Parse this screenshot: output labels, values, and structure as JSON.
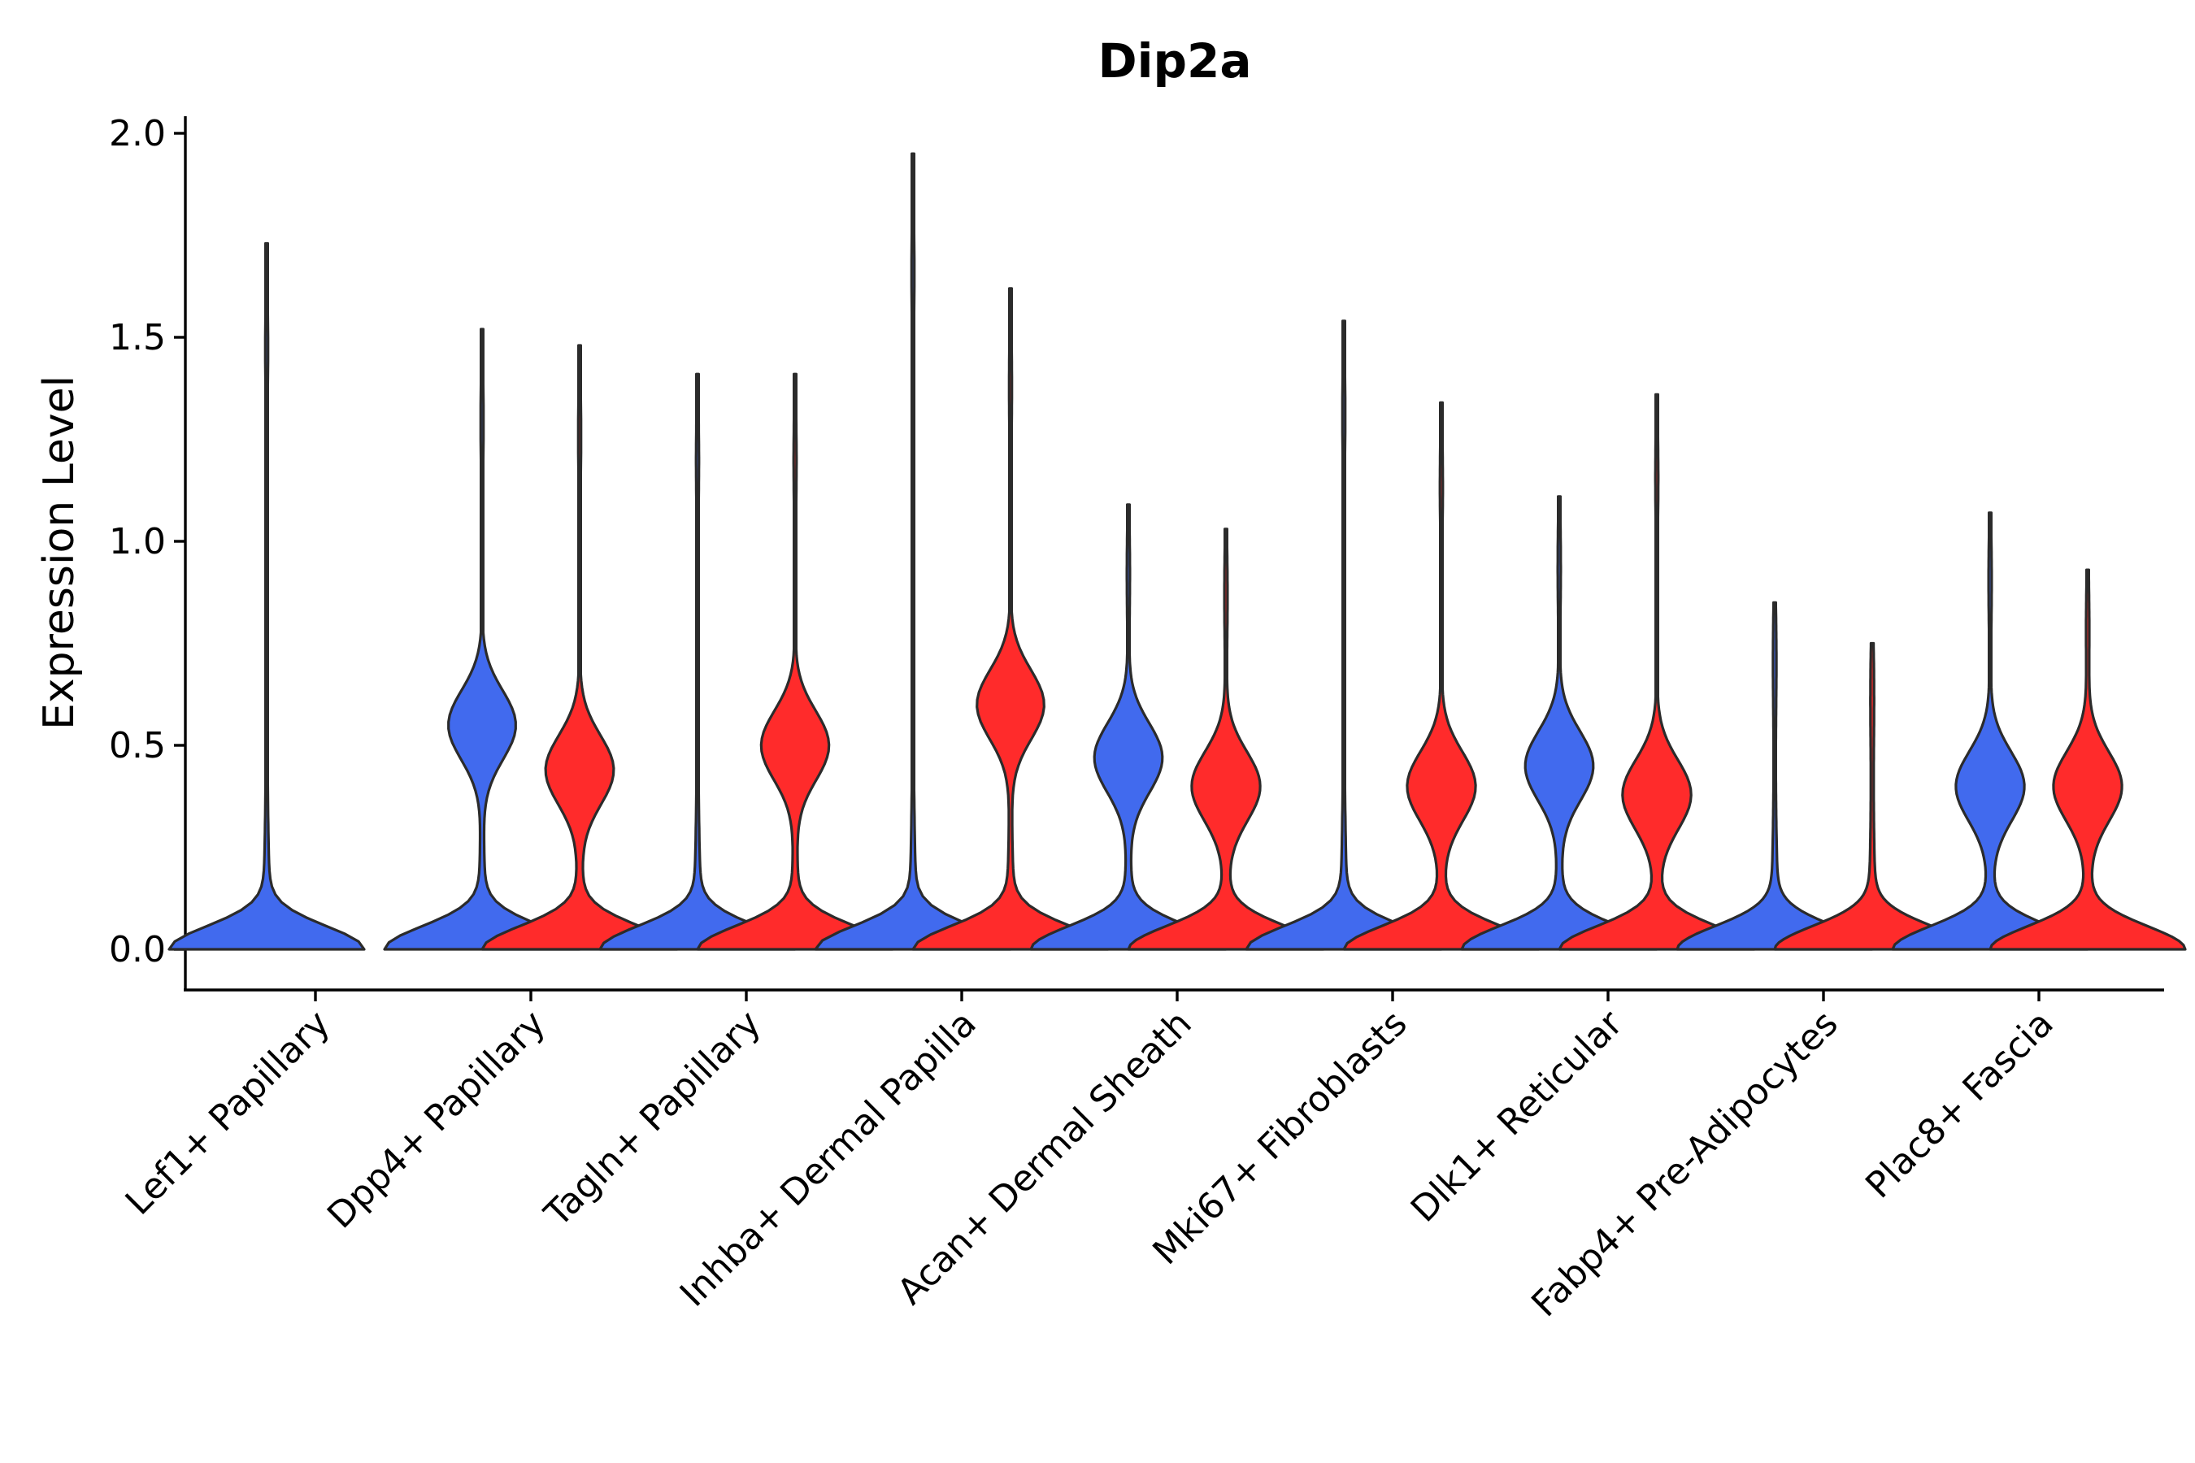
{
  "chart_data": {
    "type": "violin",
    "title": "Dip2a",
    "xlabel": "",
    "ylabel": "Expression Level",
    "ylim": [
      -0.1,
      2.05
    ],
    "yticks": [
      0.0,
      0.5,
      1.0,
      1.5,
      2.0
    ],
    "ytick_labels": [
      "0.0",
      "0.5",
      "1.0",
      "1.5",
      "2.0"
    ],
    "colors": {
      "blue": "#416AEE",
      "red": "#FF2B2B",
      "outline": "#2B2B2B"
    },
    "categories": [
      "Lef1+ Papillary",
      "Dpp4+ Papillary",
      "Tagln+ Papillary",
      "Inhba+ Dermal Papilla",
      "Acan+ Dermal Sheath",
      "Mki67+ Fibroblasts",
      "Dlk1+ Reticular",
      "Fabp4+ Pre-Adipocytes",
      "Plac8+ Fascia"
    ],
    "series": [
      {
        "name": "blue",
        "color": "#416AEE",
        "max": [
          1.73,
          1.52,
          1.41,
          1.95,
          1.09,
          1.54,
          1.11,
          0.85,
          1.07
        ],
        "mode2": [
          null,
          0.55,
          null,
          null,
          0.47,
          null,
          0.45,
          null,
          0.4
        ]
      },
      {
        "name": "red",
        "color": "#FF2B2B",
        "max": [
          0.0,
          1.48,
          1.41,
          1.62,
          1.03,
          1.34,
          1.36,
          0.75,
          0.93
        ],
        "mode2": [
          null,
          0.44,
          0.5,
          0.6,
          0.4,
          0.4,
          0.38,
          null,
          0.4
        ]
      }
    ]
  }
}
